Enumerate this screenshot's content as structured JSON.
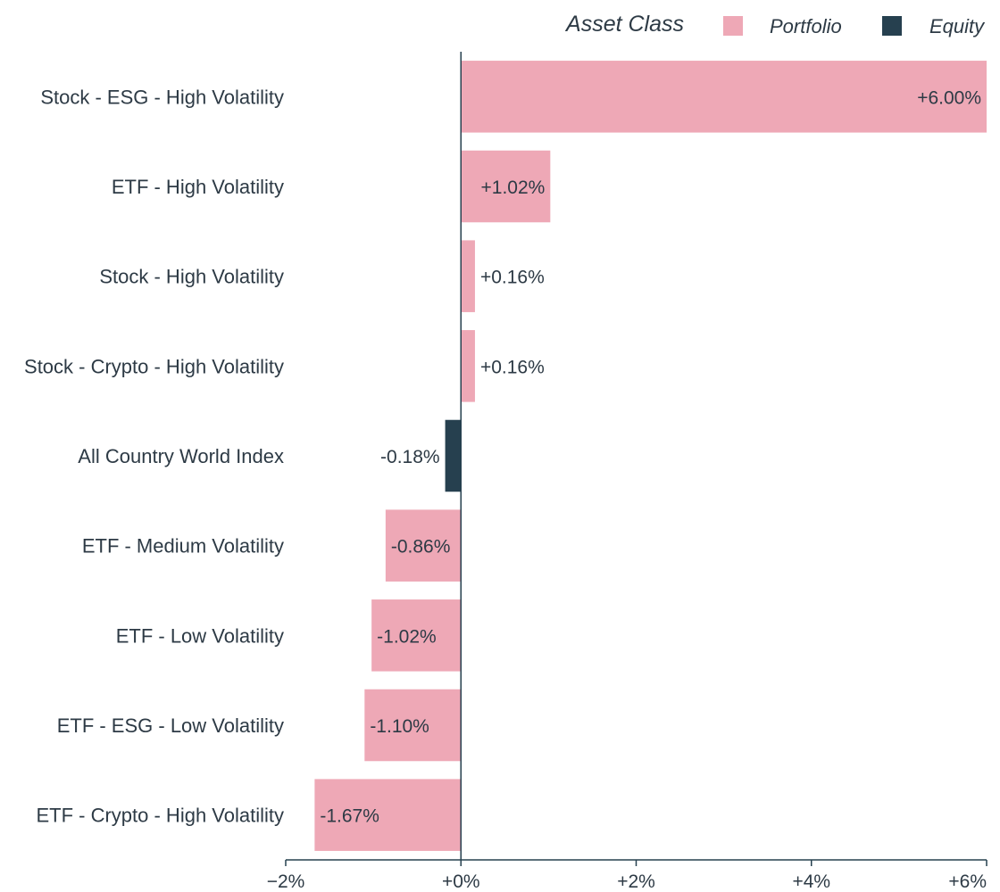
{
  "chart_data": {
    "type": "bar",
    "orientation": "horizontal",
    "legend": {
      "title": "Asset Class",
      "position": "top-right",
      "entries": [
        {
          "name": "Portfolio",
          "color": "#eea8b6"
        },
        {
          "name": "Equity",
          "color": "#26404f"
        }
      ]
    },
    "categories": [
      "Stock - ESG - High Volatility",
      "ETF - High Volatility",
      "Stock - High Volatility",
      "Stock - Crypto - High Volatility",
      "All Country World Index",
      "ETF - Medium Volatility",
      "ETF - Low Volatility",
      "ETF - ESG - Low Volatility",
      "ETF - Crypto - High Volatility"
    ],
    "values": [
      6.0,
      1.02,
      0.16,
      0.16,
      -0.18,
      -0.86,
      -1.02,
      -1.1,
      -1.67
    ],
    "value_labels": [
      "+6.00%",
      "+1.02%",
      "+0.16%",
      "+0.16%",
      "-0.18%",
      "-0.86%",
      "-1.02%",
      "-1.10%",
      "-1.67%"
    ],
    "series_of": [
      "Portfolio",
      "Portfolio",
      "Portfolio",
      "Portfolio",
      "Equity",
      "Portfolio",
      "Portfolio",
      "Portfolio",
      "Portfolio"
    ],
    "xlim": [
      -2,
      6
    ],
    "xticks": [
      -2,
      0,
      2,
      4,
      6
    ],
    "xtick_labels": [
      "−2%",
      "+0%",
      "+2%",
      "+4%",
      "+6%"
    ],
    "title": "",
    "xlabel": "",
    "ylabel": "",
    "grid": false
  }
}
